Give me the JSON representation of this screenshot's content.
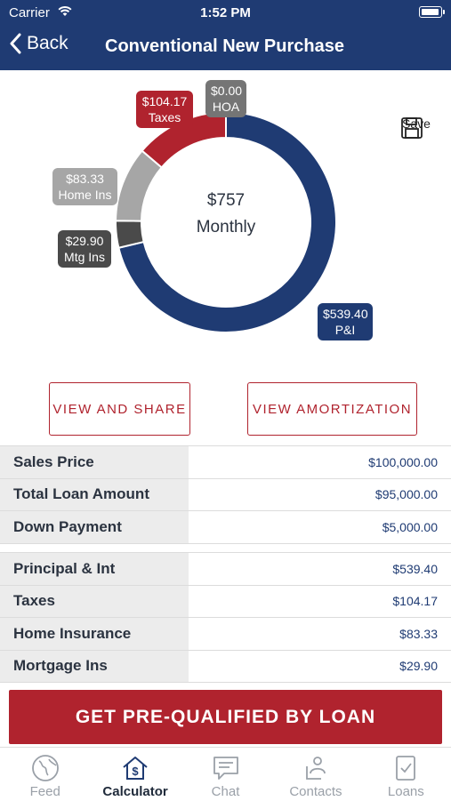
{
  "status": {
    "carrier": "Carrier",
    "time": "1:52 PM"
  },
  "nav": {
    "back_label": "Back",
    "title": "Conventional New Purchase"
  },
  "save_label": "Save",
  "chart_data": {
    "type": "pie",
    "center_value": "$757",
    "center_label": "Monthly",
    "slices": [
      {
        "name": "P&I",
        "label": "$539.40",
        "value": 539.4,
        "color": "#1f3b73"
      },
      {
        "name": "Mtg Ins",
        "label": "$29.90",
        "value": 29.9,
        "color": "#4a4a4a"
      },
      {
        "name": "Home Ins",
        "label": "$83.33",
        "value": 83.33,
        "color": "#a6a6a6"
      },
      {
        "name": "Taxes",
        "label": "$104.17",
        "value": 104.17,
        "color": "#b0232e"
      },
      {
        "name": "HOA",
        "label": "$0.00",
        "value": 0,
        "color": "#757575"
      }
    ]
  },
  "buttons": {
    "view_share": "VIEW AND SHARE",
    "view_amort": "VIEW AMORTIZATION"
  },
  "loan_table": [
    {
      "label": "Sales Price",
      "value": "$100,000.00"
    },
    {
      "label": "Total Loan Amount",
      "value": "$95,000.00"
    },
    {
      "label": "Down Payment",
      "value": "$5,000.00"
    }
  ],
  "payment_table": [
    {
      "label": "Principal & Int",
      "value": "$539.40"
    },
    {
      "label": "Taxes",
      "value": "$104.17"
    },
    {
      "label": "Home Insurance",
      "value": "$83.33"
    },
    {
      "label": "Mortgage Ins",
      "value": "$29.90"
    }
  ],
  "cta_label": "GET PRE-QUALIFIED BY LOAN",
  "tabs": [
    {
      "label": "Feed",
      "icon": "globe-icon"
    },
    {
      "label": "Calculator",
      "icon": "house-dollar-icon",
      "active": true
    },
    {
      "label": "Chat",
      "icon": "chat-icon"
    },
    {
      "label": "Contacts",
      "icon": "contacts-icon"
    },
    {
      "label": "Loans",
      "icon": "document-check-icon"
    }
  ]
}
